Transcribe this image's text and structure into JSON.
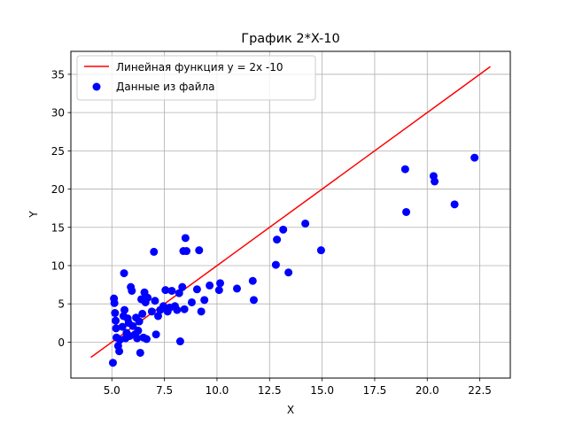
{
  "chart_data": {
    "type": "scatter",
    "title": "График 2*X-10",
    "xlabel": "X",
    "ylabel": "Y",
    "xlim": [
      3.05,
      23.95
    ],
    "ylim": [
      -4.7,
      38.0
    ],
    "grid": true,
    "legend_placement": "top-left",
    "x_ticks": [
      5.0,
      7.5,
      10.0,
      12.5,
      15.0,
      17.5,
      20.0,
      22.5
    ],
    "x_tick_labels": [
      "5.0",
      "7.5",
      "10.0",
      "12.5",
      "15.0",
      "17.5",
      "20.0",
      "22.5"
    ],
    "y_ticks": [
      0,
      5,
      10,
      15,
      20,
      25,
      30,
      35
    ],
    "y_tick_labels": [
      "0",
      "5",
      "10",
      "15",
      "20",
      "25",
      "30",
      "35"
    ],
    "line": {
      "name": "Линейная функция y = 2x -10",
      "color": "#ff0000",
      "x": [
        4.0,
        23.0
      ],
      "y": [
        -2.0,
        36.0
      ]
    },
    "scatter": {
      "name": "Данные из файла",
      "color": "#0000ff",
      "points": [
        [
          5.05,
          -2.7
        ],
        [
          5.1,
          5.7
        ],
        [
          5.12,
          5.1
        ],
        [
          5.15,
          3.8
        ],
        [
          5.18,
          2.8
        ],
        [
          5.2,
          1.8
        ],
        [
          5.22,
          0.6
        ],
        [
          5.3,
          -0.5
        ],
        [
          5.35,
          -1.2
        ],
        [
          5.38,
          0.3
        ],
        [
          5.5,
          2.0
        ],
        [
          5.55,
          3.4
        ],
        [
          5.58,
          9.0
        ],
        [
          5.6,
          4.2
        ],
        [
          5.65,
          0.5
        ],
        [
          5.7,
          1.2
        ],
        [
          5.75,
          3.1
        ],
        [
          5.8,
          2.5
        ],
        [
          5.85,
          0.8
        ],
        [
          5.9,
          7.2
        ],
        [
          5.95,
          6.7
        ],
        [
          6.0,
          2.1
        ],
        [
          6.1,
          1.0
        ],
        [
          6.15,
          3.2
        ],
        [
          6.2,
          0.5
        ],
        [
          6.25,
          1.5
        ],
        [
          6.3,
          2.7
        ],
        [
          6.35,
          -1.4
        ],
        [
          6.4,
          5.6
        ],
        [
          6.45,
          3.7
        ],
        [
          6.5,
          0.6
        ],
        [
          6.55,
          6.5
        ],
        [
          6.6,
          5.2
        ],
        [
          6.65,
          0.4
        ],
        [
          6.7,
          5.8
        ],
        [
          6.9,
          4.0
        ],
        [
          7.0,
          11.8
        ],
        [
          7.05,
          5.4
        ],
        [
          7.1,
          1.0
        ],
        [
          7.2,
          3.4
        ],
        [
          7.3,
          4.2
        ],
        [
          7.45,
          4.7
        ],
        [
          7.55,
          6.8
        ],
        [
          7.65,
          4.0
        ],
        [
          7.75,
          4.5
        ],
        [
          7.85,
          6.7
        ],
        [
          8.0,
          4.7
        ],
        [
          8.1,
          4.2
        ],
        [
          8.2,
          6.4
        ],
        [
          8.25,
          0.1
        ],
        [
          8.35,
          7.2
        ],
        [
          8.4,
          11.9
        ],
        [
          8.45,
          4.3
        ],
        [
          8.5,
          13.6
        ],
        [
          8.55,
          11.9
        ],
        [
          8.8,
          5.2
        ],
        [
          9.05,
          6.9
        ],
        [
          9.15,
          12.0
        ],
        [
          9.25,
          4.0
        ],
        [
          9.4,
          5.5
        ],
        [
          9.65,
          7.4
        ],
        [
          10.1,
          6.8
        ],
        [
          10.15,
          7.7
        ],
        [
          10.95,
          7.0
        ],
        [
          11.7,
          8.0
        ],
        [
          11.75,
          5.5
        ],
        [
          12.8,
          10.1
        ],
        [
          12.85,
          13.4
        ],
        [
          13.15,
          14.7
        ],
        [
          13.4,
          9.1
        ],
        [
          14.2,
          15.5
        ],
        [
          14.95,
          12.0
        ],
        [
          18.95,
          22.6
        ],
        [
          19.0,
          17.0
        ],
        [
          20.3,
          21.7
        ],
        [
          20.35,
          21.0
        ],
        [
          21.3,
          18.0
        ],
        [
          22.25,
          24.1
        ]
      ]
    }
  }
}
